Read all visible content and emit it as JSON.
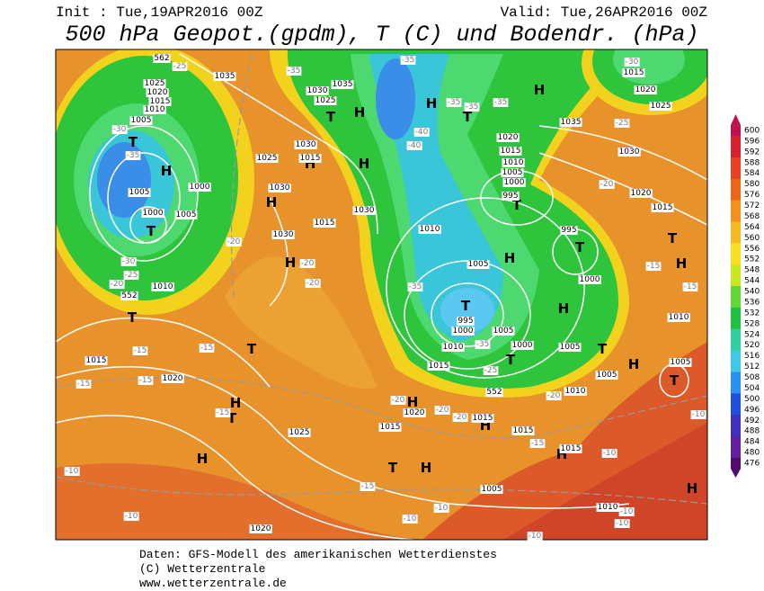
{
  "header": {
    "init": "Init : Tue,19APR2016 00Z",
    "valid": "Valid: Tue,26APR2016 00Z",
    "title": "500 hPa Geopot.(gpdm), T (C) und Bodendr. (hPa)"
  },
  "colorbar": {
    "labels": [
      600,
      596,
      592,
      588,
      584,
      580,
      576,
      572,
      568,
      564,
      560,
      556,
      552,
      548,
      544,
      540,
      536,
      532,
      528,
      524,
      520,
      516,
      512,
      508,
      504,
      500,
      496,
      492,
      488,
      484,
      480,
      476
    ]
  },
  "map_labels": [
    "H",
    "H",
    "H",
    "H",
    "H",
    "H",
    "H",
    "H",
    "H",
    "H",
    "H",
    "H",
    "H",
    "H",
    "H",
    "H",
    "H",
    "H",
    "H",
    "T",
    "T",
    "T",
    "T",
    "T",
    "T",
    "T",
    "T",
    "T",
    "T",
    "T",
    "T",
    "T",
    "T",
    "T",
    "1035",
    "1025",
    "1020",
    "1015",
    "1010",
    "1005",
    "1005",
    "1000",
    "1005",
    "1000",
    "1010",
    "1030",
    "1025",
    "1035",
    "1030",
    "1025",
    "1015",
    "1030",
    "1015",
    "1030",
    "1030",
    "1035",
    "1030",
    "1020",
    "1015",
    "1015",
    "1020",
    "1025",
    "1020",
    "1015",
    "1010",
    "1005",
    "1000",
    "995",
    "995",
    "1000",
    "1010",
    "1005",
    "995",
    "1000",
    "1010",
    "1015",
    "1005",
    "1000",
    "1005",
    "1005",
    "1010",
    "1010",
    "1005",
    "1015",
    "1020",
    "1025",
    "1020",
    "1015",
    "1015",
    "1015",
    "1015",
    "1005",
    "1010",
    "1020",
    "-25",
    "-35",
    "-35",
    "-35",
    "-35",
    "-35",
    "-40",
    "-40",
    "-30",
    "-35",
    "-30",
    "-25",
    "-20",
    "-20",
    "-20",
    "-20",
    "-30",
    "-25",
    "-20",
    "-15",
    "-15",
    "-35",
    "-35",
    "-25",
    "-20",
    "-15",
    "-15",
    "-15",
    "-15",
    "-15",
    "-20",
    "-20",
    "-20",
    "-15",
    "-10",
    "-10",
    "-10",
    "-15",
    "-10",
    "-10",
    "-10",
    "-10",
    "-10",
    "-10",
    "552",
    "552",
    "562"
  ],
  "footer": {
    "lines": [
      "Daten: GFS-Modell des amerikanischen Wetterdienstes",
      "(C) Wetterzentrale",
      "www.wetterzentrale.de"
    ]
  }
}
